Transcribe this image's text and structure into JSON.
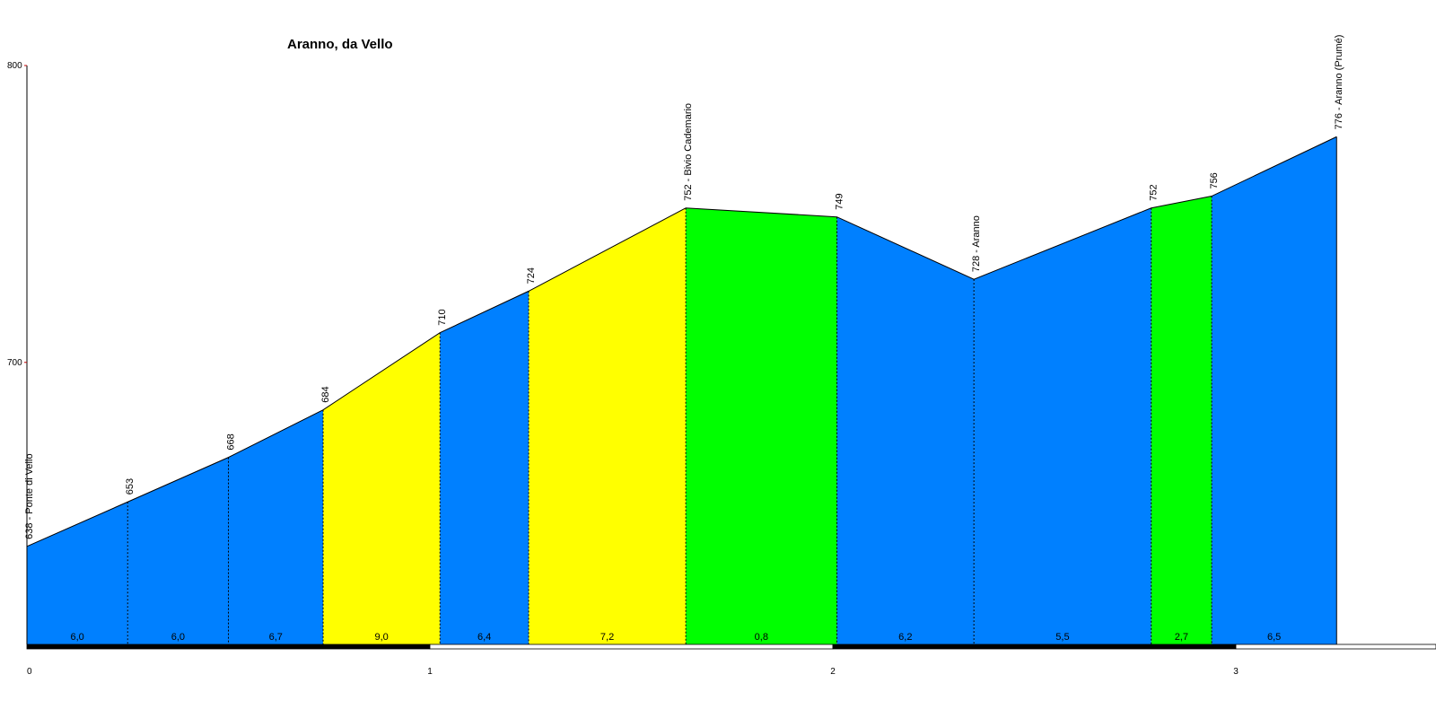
{
  "chart_data": {
    "type": "area",
    "title": "Aranno, da Vello",
    "xlabel": "",
    "ylabel": "",
    "xlim": [
      0,
      3.5
    ],
    "ylim": [
      605,
      800
    ],
    "x_ticks": [
      "0",
      "1",
      "2",
      "3"
    ],
    "y_ticks": [
      "700",
      "800"
    ],
    "points": [
      {
        "x": 0.0,
        "y": 638,
        "label": "638 - Ponte di Vello"
      },
      {
        "x": 0.25,
        "y": 653,
        "label": "653"
      },
      {
        "x": 0.5,
        "y": 668,
        "label": "668"
      },
      {
        "x": 0.735,
        "y": 684,
        "label": "684"
      },
      {
        "x": 1.025,
        "y": 710,
        "label": "710"
      },
      {
        "x": 1.245,
        "y": 724,
        "label": "724"
      },
      {
        "x": 1.635,
        "y": 752,
        "label": "752 - Bivio Cademario"
      },
      {
        "x": 2.01,
        "y": 749,
        "label": "749"
      },
      {
        "x": 2.35,
        "y": 728,
        "label": "728 - Aranno"
      },
      {
        "x": 2.79,
        "y": 752,
        "label": "752"
      },
      {
        "x": 2.94,
        "y": 756,
        "label": "756"
      },
      {
        "x": 3.25,
        "y": 776,
        "label": "776 - Aranno (Prumé)"
      }
    ],
    "segments": [
      {
        "grade": "6,0",
        "color": "#0080ff"
      },
      {
        "grade": "6,0",
        "color": "#0080ff"
      },
      {
        "grade": "6,7",
        "color": "#0080ff"
      },
      {
        "grade": "9,0",
        "color": "#ffff00"
      },
      {
        "grade": "6,4",
        "color": "#0080ff"
      },
      {
        "grade": "7,2",
        "color": "#ffff00"
      },
      {
        "grade": "0,8",
        "color": "#00ff00"
      },
      {
        "grade": "6,2",
        "color": "#0080ff"
      },
      {
        "grade": "5,5",
        "color": "#0080ff"
      },
      {
        "grade": "2,7",
        "color": "#00ff00"
      },
      {
        "grade": "6,5",
        "color": "#0080ff"
      }
    ],
    "grid": false,
    "legend": "none"
  }
}
